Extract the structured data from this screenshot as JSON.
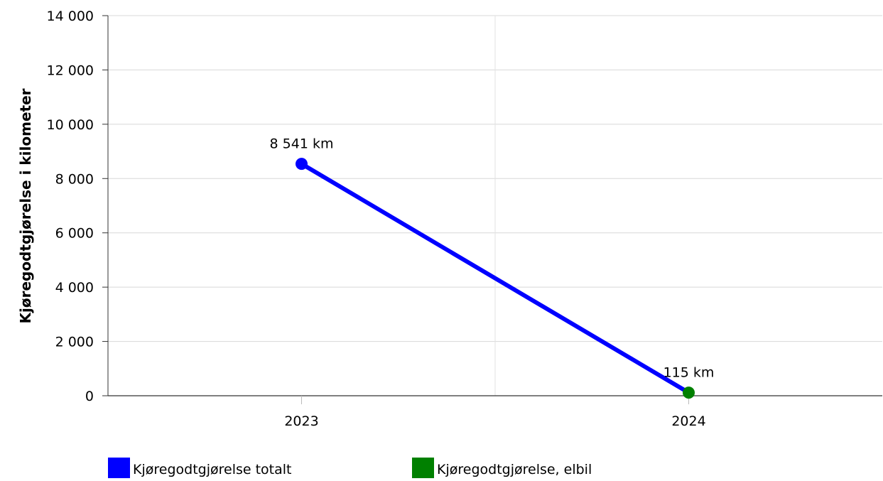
{
  "chart_data": {
    "type": "line",
    "categories": [
      "2023",
      "2024"
    ],
    "ylabel": "Kjøregodtgjørelse i kilometer",
    "xlabel": "",
    "ylim": [
      0,
      14000
    ],
    "yticks": [
      0,
      2000,
      4000,
      6000,
      8000,
      10000,
      12000,
      14000
    ],
    "ytick_labels": [
      "0",
      "2 000",
      "4 000",
      "6 000",
      "8 000",
      "10 000",
      "12 000",
      "14 000"
    ],
    "grid": true,
    "legend_position": "bottom-left",
    "series": [
      {
        "name": "Kjøregodtgjørelse totalt",
        "color": "#0000ff",
        "values": [
          8541,
          115
        ],
        "point_colors": [
          "#0000ff",
          "#008000"
        ],
        "data_labels": [
          "8 541 km",
          "115 km"
        ]
      }
    ],
    "legend": [
      {
        "label": "Kjøregodtgjørelse totalt",
        "color": "#0000ff"
      },
      {
        "label": "Kjøregodtgjørelse, elbil",
        "color": "#008000"
      }
    ]
  }
}
